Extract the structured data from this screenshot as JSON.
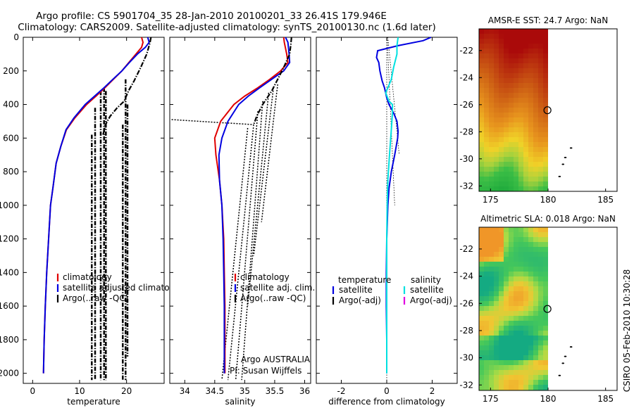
{
  "figure": {
    "title_line1": "Argo profile: CS 5901704_35 28-Jan-2010 20100201_33 26.41S 179.946E",
    "title_line2": "Climatology: CARS2009. Satellite-adjusted climatology: synTS_20100130.nc (1.6d later)",
    "side_stamp": "CSIRO 05-Feb-2010 10:30:28"
  },
  "colors": {
    "climatology": "#e00000",
    "satellite": "#0000e0",
    "argo": "#000000",
    "satellite_salinity": "#00e0e0",
    "argo_salinity_adj": "#e000e0"
  },
  "chart_data": [
    {
      "type": "line",
      "xlabel": "temperature",
      "xlim": [
        -2,
        28
      ],
      "ylim": [
        2060,
        0
      ],
      "x_ticks": [
        "0",
        "10",
        "20"
      ],
      "y_ticks": [
        "0",
        "200",
        "400",
        "600",
        "800",
        "1000",
        "1200",
        "1400",
        "1600",
        "1800",
        "2000"
      ],
      "legend": [
        "climatology",
        "satellite adjusted climatology",
        "Argo(..raw -QC)"
      ],
      "series": [
        {
          "name": "climatology",
          "role": "clim",
          "x": [
            23.2,
            23.5,
            23.2,
            22.0,
            20.5,
            19.0,
            17.2,
            15.4,
            13.5,
            11.5,
            9.0,
            7.2,
            6.0,
            5.0,
            4.3,
            3.8,
            3.4,
            3.0,
            2.7,
            2.45,
            2.3
          ],
          "y": [
            0,
            30,
            60,
            100,
            150,
            200,
            250,
            300,
            350,
            400,
            480,
            550,
            650,
            750,
            900,
            1000,
            1200,
            1400,
            1600,
            1800,
            2000
          ]
        },
        {
          "name": "satellite adjusted climatology",
          "role": "sat",
          "x": [
            24.5,
            24.8,
            24.0,
            22.3,
            20.6,
            19.0,
            17.1,
            15.2,
            13.2,
            11.2,
            8.8,
            7.1,
            6.0,
            5.0,
            4.3,
            3.8,
            3.4,
            3.0,
            2.7,
            2.45,
            2.3
          ],
          "y": [
            0,
            30,
            60,
            100,
            150,
            200,
            250,
            300,
            350,
            400,
            480,
            550,
            650,
            750,
            900,
            1000,
            1200,
            1400,
            1600,
            1800,
            2000
          ]
        },
        {
          "name": "Argo(..raw -QC)",
          "role": "argo",
          "x": [
            25.2,
            25.0,
            24.3,
            23.0,
            21.6,
            20.4,
            19.5,
            18.0,
            16.5,
            15.5,
            15.0
          ],
          "y": [
            0,
            30,
            100,
            180,
            260,
            320,
            380,
            420,
            470,
            520,
            580
          ]
        }
      ],
      "artifact_lines": [
        {
          "x": [
            12.6,
            12.6
          ],
          "y": [
            580,
            2040
          ]
        },
        {
          "x": [
            13.3,
            13.3
          ],
          "y": [
            420,
            2040
          ]
        },
        {
          "x": [
            14.5,
            14.5
          ],
          "y": [
            320,
            2040
          ]
        },
        {
          "x": [
            15.2,
            15.2
          ],
          "y": [
            300,
            2040
          ]
        },
        {
          "x": [
            15.6,
            15.6
          ],
          "y": [
            320,
            2040
          ]
        },
        {
          "x": [
            19.2,
            19.2
          ],
          "y": [
            520,
            2040
          ]
        },
        {
          "x": [
            19.8,
            19.8
          ],
          "y": [
            250,
            2040
          ]
        },
        {
          "x": [
            20.2,
            20.2
          ],
          "y": [
            400,
            1900
          ]
        }
      ]
    },
    {
      "type": "line",
      "xlabel": "salinity",
      "xlim": [
        33.75,
        36.1
      ],
      "ylim": [
        2060,
        0
      ],
      "x_ticks": [
        "34",
        "34.5",
        "35",
        "35.5",
        "36"
      ],
      "y_ticks": [],
      "legend": [
        "climatology",
        "satellite adj. clim.",
        "Argo(..raw -QC)"
      ],
      "annotations": [
        "Argo AUSTRALIA",
        "PI: Susan Wijffels"
      ],
      "series": [
        {
          "name": "climatology",
          "role": "clim",
          "x": [
            35.65,
            35.66,
            35.7,
            35.72,
            35.6,
            35.42,
            35.22,
            35.0,
            34.82,
            34.6,
            34.5,
            34.52,
            34.58,
            34.62,
            34.65,
            34.66,
            34.67,
            34.67,
            34.67
          ],
          "y": [
            0,
            30,
            100,
            150,
            200,
            250,
            300,
            350,
            400,
            500,
            600,
            700,
            850,
            1000,
            1200,
            1400,
            1600,
            1800,
            2000
          ]
        },
        {
          "name": "satellite adj. clim.",
          "role": "sat",
          "x": [
            35.68,
            35.72,
            35.74,
            35.75,
            35.65,
            35.45,
            35.25,
            35.06,
            34.9,
            34.72,
            34.62,
            34.57,
            34.58,
            34.62,
            34.64,
            34.65,
            34.66,
            34.66,
            34.66
          ],
          "y": [
            0,
            30,
            100,
            150,
            200,
            250,
            300,
            350,
            400,
            500,
            600,
            700,
            850,
            1000,
            1200,
            1400,
            1600,
            1800,
            2000
          ]
        },
        {
          "name": "Argo(..raw -QC)",
          "role": "argo",
          "x": [
            35.78,
            35.77,
            35.75,
            35.65,
            35.55,
            35.45,
            35.3,
            35.2,
            35.15
          ],
          "y": [
            0,
            40,
            100,
            180,
            250,
            320,
            400,
            470,
            520
          ]
        }
      ],
      "artifact_lines": [
        {
          "x": [
            33.78,
            35.15
          ],
          "y": [
            490,
            520
          ]
        },
        {
          "x": [
            35.05,
            34.62
          ],
          "y": [
            540,
            2040
          ]
        },
        {
          "x": [
            35.15,
            34.72
          ],
          "y": [
            520,
            2040
          ]
        },
        {
          "x": [
            35.22,
            34.85
          ],
          "y": [
            440,
            2040
          ]
        },
        {
          "x": [
            35.3,
            34.95
          ],
          "y": [
            380,
            2040
          ]
        },
        {
          "x": [
            35.4,
            35.05
          ],
          "y": [
            330,
            1600
          ]
        },
        {
          "x": [
            35.48,
            35.15
          ],
          "y": [
            300,
            1300
          ]
        },
        {
          "x": [
            35.55,
            35.28
          ],
          "y": [
            280,
            1100
          ]
        }
      ]
    },
    {
      "type": "line",
      "xlabel": "difference from climatology",
      "xlim": [
        -3.1,
        3.1
      ],
      "ylim": [
        2060,
        0
      ],
      "x_ticks": [
        "-2",
        "0",
        "2"
      ],
      "y_ticks": [],
      "legend_left_title": "temperature",
      "legend_right_title": "salinity",
      "legend_left": [
        "satellite",
        "Argo(-adj)"
      ],
      "legend_right": [
        "satellite",
        "Argo(-adj)"
      ],
      "series": [
        {
          "name": "satellite",
          "role": "temp_sat",
          "x": [
            1.95,
            1.6,
            0.5,
            -0.4,
            -0.45,
            -0.35,
            -0.3,
            -0.2,
            -0.1,
            0.0,
            0.1,
            0.3,
            0.45,
            0.5,
            0.48,
            0.35,
            0.2,
            0.1,
            0.05,
            0.0,
            -0.02,
            -0.02,
            0.0,
            0.0
          ],
          "y": [
            0,
            20,
            50,
            80,
            120,
            150,
            200,
            260,
            300,
            360,
            400,
            450,
            500,
            560,
            600,
            700,
            800,
            900,
            1000,
            1200,
            1400,
            1600,
            1800,
            2000
          ]
        },
        {
          "name": "satellite",
          "role": "sal_sat",
          "x": [
            0.5,
            0.45,
            0.45,
            0.3,
            0.2,
            0.05,
            -0.05,
            0.1,
            0.25,
            0.25,
            0.2,
            0.12,
            0.05,
            0.02,
            0.0,
            0.0,
            0.0,
            0.0
          ],
          "y": [
            0,
            50,
            100,
            180,
            250,
            300,
            330,
            380,
            400,
            450,
            550,
            700,
            850,
            1000,
            1200,
            1500,
            1800,
            2000
          ]
        }
      ],
      "zero_lines": [
        {
          "x": [
            0,
            0
          ],
          "y": [
            0,
            2040
          ]
        },
        {
          "x": [
            0.02,
            0.35
          ],
          "y": [
            0,
            1000
          ]
        },
        {
          "x": [
            0.05,
            0.55
          ],
          "y": [
            0,
            700
          ]
        }
      ]
    }
  ],
  "maps": [
    {
      "type": "heatmap",
      "title": "AMSR-E SST: 24.7 Argo: NaN",
      "xlim": [
        174,
        186
      ],
      "ylim": [
        -32.4,
        -20.4
      ],
      "x_ticks": [
        "175",
        "180",
        "185"
      ],
      "y_ticks": [
        "-22",
        "-24",
        "-26",
        "-28",
        "-30",
        "-32"
      ],
      "data_extent_lon": [
        174,
        180
      ],
      "argo_marker": {
        "lon": 179.946,
        "lat": -26.41
      },
      "island_specks": [
        [
          182.0,
          -29.2
        ],
        [
          181.5,
          -29.9
        ],
        [
          181.3,
          -30.4
        ],
        [
          181.0,
          -31.3
        ]
      ]
    },
    {
      "type": "heatmap",
      "title": "Altimetric SLA: 0.018 Argo: NaN",
      "xlim": [
        174,
        186
      ],
      "ylim": [
        -32.4,
        -20.4
      ],
      "x_ticks": [
        "175",
        "180",
        "185"
      ],
      "y_ticks": [
        "-22",
        "-24",
        "-26",
        "-28",
        "-30",
        "-32"
      ],
      "data_extent_lon": [
        174,
        180
      ],
      "argo_marker": {
        "lon": 179.946,
        "lat": -26.41
      },
      "island_specks": [
        [
          182.0,
          -29.2
        ],
        [
          181.5,
          -29.9
        ],
        [
          181.3,
          -30.4
        ],
        [
          181.0,
          -31.3
        ]
      ]
    }
  ]
}
